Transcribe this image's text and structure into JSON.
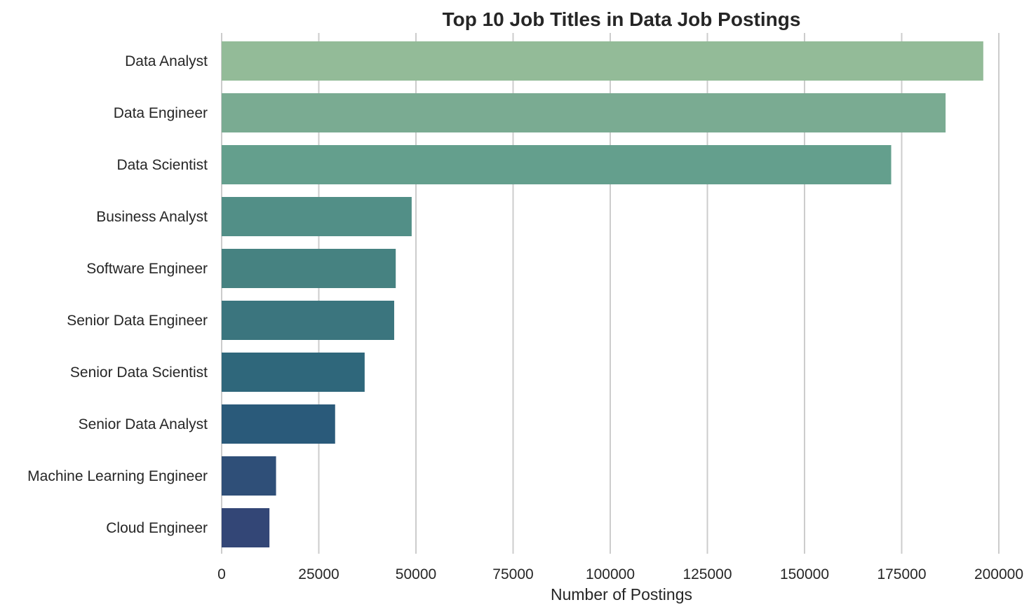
{
  "chart_data": {
    "type": "bar",
    "orientation": "horizontal",
    "title": "Top 10 Job Titles in Data Job Postings",
    "xlabel": "Number of Postings",
    "ylabel": "",
    "categories": [
      "Data Analyst",
      "Data Engineer",
      "Data Scientist",
      "Business Analyst",
      "Software Engineer",
      "Senior Data Engineer",
      "Senior Data Scientist",
      "Senior Data Analyst",
      "Machine Learning Engineer",
      "Cloud Engineer"
    ],
    "values": [
      196000,
      186300,
      172300,
      48900,
      44800,
      44400,
      36800,
      29200,
      14000,
      12300
    ],
    "xlim": [
      0,
      200000
    ],
    "xticks": [
      0,
      25000,
      50000,
      75000,
      100000,
      125000,
      150000,
      175000,
      200000
    ],
    "xtick_labels": [
      "0",
      "25000",
      "50000",
      "75000",
      "100000",
      "125000",
      "150000",
      "175000",
      "200000"
    ],
    "grid": "vertical",
    "legend": "none",
    "colors": [
      "#93bb98",
      "#7aab92",
      "#649f8d",
      "#528f87",
      "#468281",
      "#3b757e",
      "#2f677b",
      "#2a5a7a",
      "#2f4f78",
      "#334676"
    ]
  }
}
